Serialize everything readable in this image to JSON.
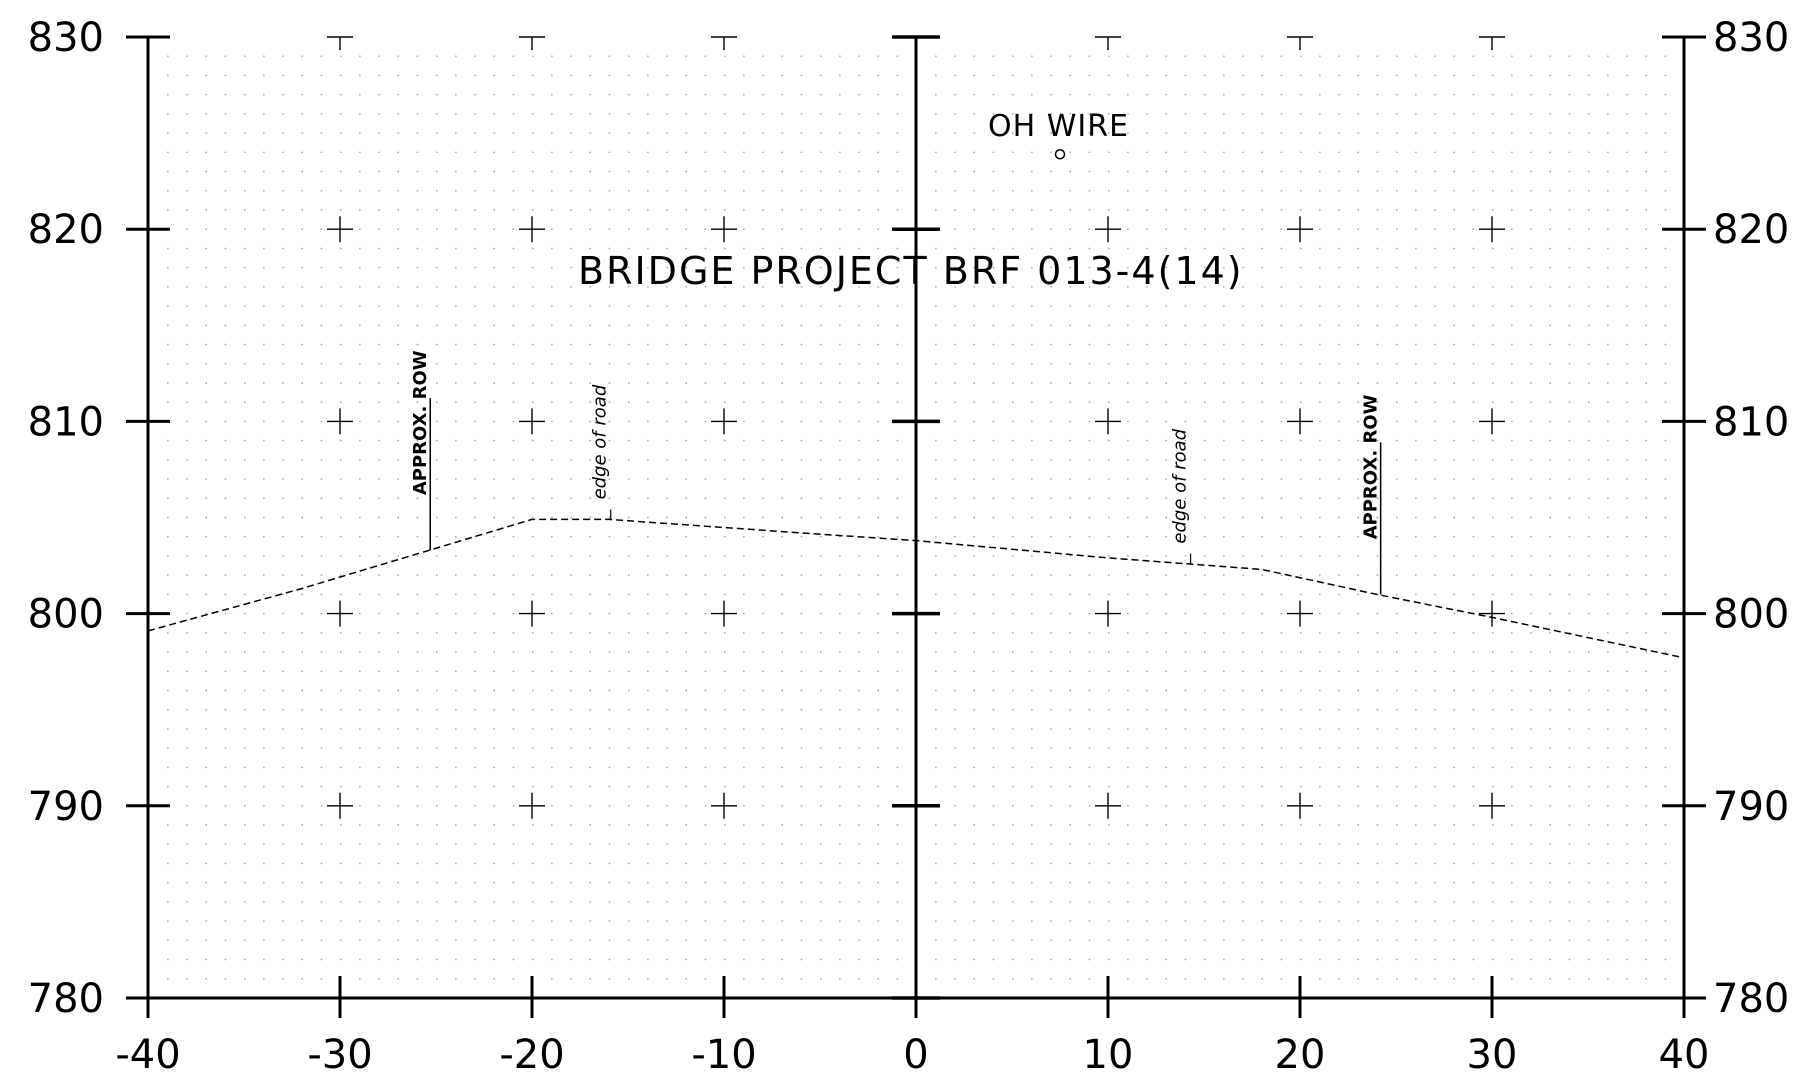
{
  "colors": {
    "ink": "#000000",
    "paper": "#ffffff",
    "grid_dot": "#9a9a9a"
  },
  "chart_data": {
    "type": "line",
    "title": "BRIDGE PROJECT  BRF  013-4(14)",
    "xlim": [
      -40,
      40
    ],
    "ylim": [
      780,
      830
    ],
    "x_ticks": [
      -40,
      -30,
      -20,
      -10,
      0,
      10,
      20,
      30,
      40
    ],
    "x_tick_labels": [
      "-40",
      "-30",
      "-20",
      "-10",
      "0",
      "10",
      "20",
      "30",
      "40"
    ],
    "y_ticks": [
      780,
      790,
      800,
      810,
      820,
      830
    ],
    "y_tick_labels": [
      "780",
      "790",
      "800",
      "810",
      "820",
      "830"
    ],
    "grid": "dotted",
    "series": [
      {
        "style": "dashed",
        "x": [
          -40,
          -32,
          -20,
          -16,
          -6,
          0,
          10,
          18,
          24,
          30,
          40
        ],
        "y": [
          799.1,
          801.3,
          804.9,
          804.9,
          804.2,
          803.8,
          802.9,
          802.3,
          801.0,
          799.8,
          797.7
        ]
      }
    ],
    "annotations": {
      "oh_wire": {
        "label": "OH WIRE",
        "x": 7.5,
        "y": 823.9
      },
      "row_left": {
        "label": "APPROX. ROW",
        "x": -25.3,
        "y": 803.3
      },
      "row_right": {
        "label": "APPROX. ROW",
        "x": 24.2,
        "y": 801.0
      },
      "edge_left": {
        "label": "edge of road",
        "x": -15.9,
        "y": 804.9
      },
      "edge_right": {
        "label": "edge of road",
        "x": 14.3,
        "y": 802.6
      }
    }
  }
}
